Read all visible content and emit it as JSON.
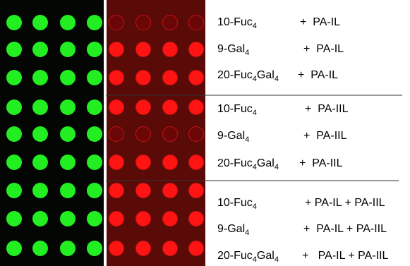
{
  "rows": [
    {
      "glycan": [
        {
          "text": "10-Fuc"
        },
        {
          "sub": "4"
        }
      ],
      "lectin": "+  PA-IL",
      "red_color": "#6a0606"
    },
    {
      "glycan": [
        {
          "text": "9-Gal"
        },
        {
          "sub": "4"
        }
      ],
      "lectin": "+  PA-IL",
      "red_color": "#ff1414"
    },
    {
      "glycan": [
        {
          "text": "20-Fuc"
        },
        {
          "sub": "4"
        },
        {
          "text": "Gal"
        },
        {
          "sub": "4"
        }
      ],
      "lectin": "+  PA-IL",
      "red_color": "#ff1414"
    },
    {
      "glycan": [
        {
          "text": "10-Fuc"
        },
        {
          "sub": "4"
        }
      ],
      "lectin": "+  PA-IIL",
      "red_color": "#ff1414"
    },
    {
      "glycan": [
        {
          "text": "9-Gal"
        },
        {
          "sub": "4"
        }
      ],
      "lectin": "+  PA-IIL",
      "red_color": "#6a0606"
    },
    {
      "glycan": [
        {
          "text": "20-Fuc"
        },
        {
          "sub": "4"
        },
        {
          "text": "Gal"
        },
        {
          "sub": "4"
        }
      ],
      "lectin": "+  PA-IIL",
      "red_color": "#ff1414"
    },
    {
      "glycan": [
        {
          "text": "10-Fuc"
        },
        {
          "sub": "4"
        }
      ],
      "lectin": "+ PA-IL + PA-IIL",
      "red_color": "#ff1414"
    },
    {
      "glycan": [
        {
          "text": "9-Gal"
        },
        {
          "sub": "4"
        }
      ],
      "lectin": "+  PA-IL + PA-IIL",
      "red_color": "#ff1414"
    },
    {
      "glycan": [
        {
          "text": "20-Fuc"
        },
        {
          "sub": "4"
        },
        {
          "text": "Gal"
        },
        {
          "sub": "4"
        }
      ],
      "lectin": "+   PA-IL + PA-IIL",
      "red_color": "#ff1414"
    }
  ],
  "green_color": "#22ee22"
}
